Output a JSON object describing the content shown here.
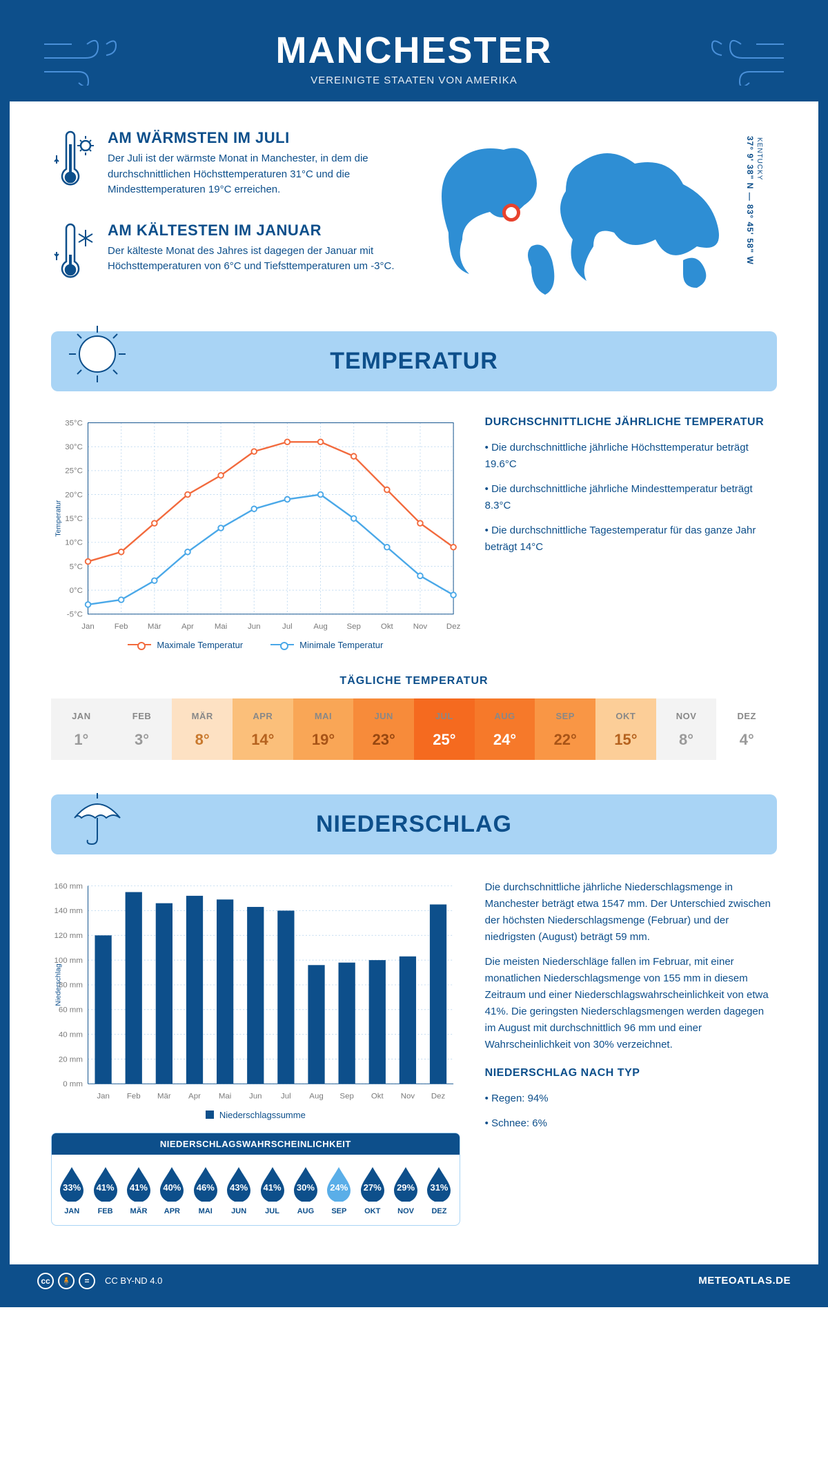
{
  "header": {
    "title": "MANCHESTER",
    "subtitle": "VEREINIGTE STAATEN VON AMERIKA"
  },
  "location": {
    "state": "KENTUCKY",
    "coords": "37° 9' 38\" N — 83° 45' 58\" W"
  },
  "facts": {
    "warm": {
      "title": "AM WÄRMSTEN IM JULI",
      "text": "Der Juli ist der wärmste Monat in Manchester, in dem die durchschnittlichen Höchsttemperaturen 31°C und die Mindesttemperaturen 19°C erreichen."
    },
    "cold": {
      "title": "AM KÄLTESTEN IM JANUAR",
      "text": "Der kälteste Monat des Jahres ist dagegen der Januar mit Höchsttemperaturen von 6°C und Tiefsttemperaturen um -3°C."
    }
  },
  "months": [
    "Jan",
    "Feb",
    "Mär",
    "Apr",
    "Mai",
    "Jun",
    "Jul",
    "Aug",
    "Sep",
    "Okt",
    "Nov",
    "Dez"
  ],
  "months_upper": [
    "JAN",
    "FEB",
    "MÄR",
    "APR",
    "MAI",
    "JUN",
    "JUL",
    "AUG",
    "SEP",
    "OKT",
    "NOV",
    "DEZ"
  ],
  "temperature": {
    "section_title": "TEMPERATUR",
    "info_title": "DURCHSCHNITTLICHE JÄHRLICHE TEMPERATUR",
    "bullets": [
      "• Die durchschnittliche jährliche Höchsttemperatur beträgt 19.6°C",
      "• Die durchschnittliche jährliche Mindesttemperatur beträgt 8.3°C",
      "• Die durchschnittliche Tagestemperatur für das ganze Jahr beträgt 14°C"
    ],
    "chart": {
      "ylabel": "Temperatur",
      "ylim": [
        -5,
        35
      ],
      "ytick_step": 5,
      "max_series": [
        6,
        8,
        14,
        20,
        24,
        29,
        31,
        31,
        28,
        21,
        14,
        9
      ],
      "min_series": [
        -3,
        -2,
        2,
        8,
        13,
        17,
        19,
        20,
        15,
        9,
        3,
        -1
      ],
      "max_color": "#f26a3d",
      "min_color": "#4aa8e8",
      "grid_color": "#bfd9f0",
      "legend": {
        "max": "Maximale Temperatur",
        "min": "Minimale Temperatur"
      }
    },
    "daily": {
      "title": "TÄGLICHE TEMPERATUR",
      "values": [
        1,
        3,
        8,
        14,
        19,
        23,
        25,
        24,
        22,
        15,
        8,
        4
      ],
      "colors": [
        "#f3f3f3",
        "#f3f3f3",
        "#fde1c3",
        "#fbbf7a",
        "#f9a656",
        "#f78b3a",
        "#f56a1f",
        "#f6792a",
        "#f99645",
        "#fcce98",
        "#f3f3f3",
        "#ffffff"
      ],
      "text_colors": [
        "#9a9a9a",
        "#9a9a9a",
        "#c9792e",
        "#b5621e",
        "#a85417",
        "#974710",
        "#ffffff",
        "#ffffff",
        "#a85417",
        "#b5621e",
        "#9a9a9a",
        "#9a9a9a"
      ]
    }
  },
  "precip": {
    "section_title": "NIEDERSCHLAG",
    "text1": "Die durchschnittliche jährliche Niederschlagsmenge in Manchester beträgt etwa 1547 mm. Der Unterschied zwischen der höchsten Niederschlagsmenge (Februar) und der niedrigsten (August) beträgt 59 mm.",
    "text2": "Die meisten Niederschläge fallen im Februar, mit einer monatlichen Niederschlagsmenge von 155 mm in diesem Zeitraum und einer Niederschlagswahrscheinlichkeit von etwa 41%. Die geringsten Niederschlagsmengen werden dagegen im August mit durchschnittlich 96 mm und einer Wahrscheinlichkeit von 30% verzeichnet.",
    "type_title": "NIEDERSCHLAG NACH TYP",
    "type_items": [
      "• Regen: 94%",
      "• Schnee: 6%"
    ],
    "chart": {
      "ylabel": "Niederschlag",
      "ylim": [
        0,
        160
      ],
      "ytick_step": 20,
      "values": [
        120,
        155,
        146,
        152,
        149,
        143,
        140,
        96,
        98,
        100,
        103,
        145
      ],
      "bar_color": "#0d4f8b",
      "legend": "Niederschlagssumme"
    },
    "prob": {
      "title": "NIEDERSCHLAGSWAHRSCHEINLICHKEIT",
      "values": [
        "33%",
        "41%",
        "41%",
        "40%",
        "46%",
        "43%",
        "41%",
        "30%",
        "24%",
        "27%",
        "29%",
        "31%"
      ],
      "light_index": 8,
      "dark_color": "#0d4f8b",
      "light_color": "#5aaee8"
    }
  },
  "footer": {
    "license": "CC BY-ND 4.0",
    "site": "METEOATLAS.DE"
  }
}
